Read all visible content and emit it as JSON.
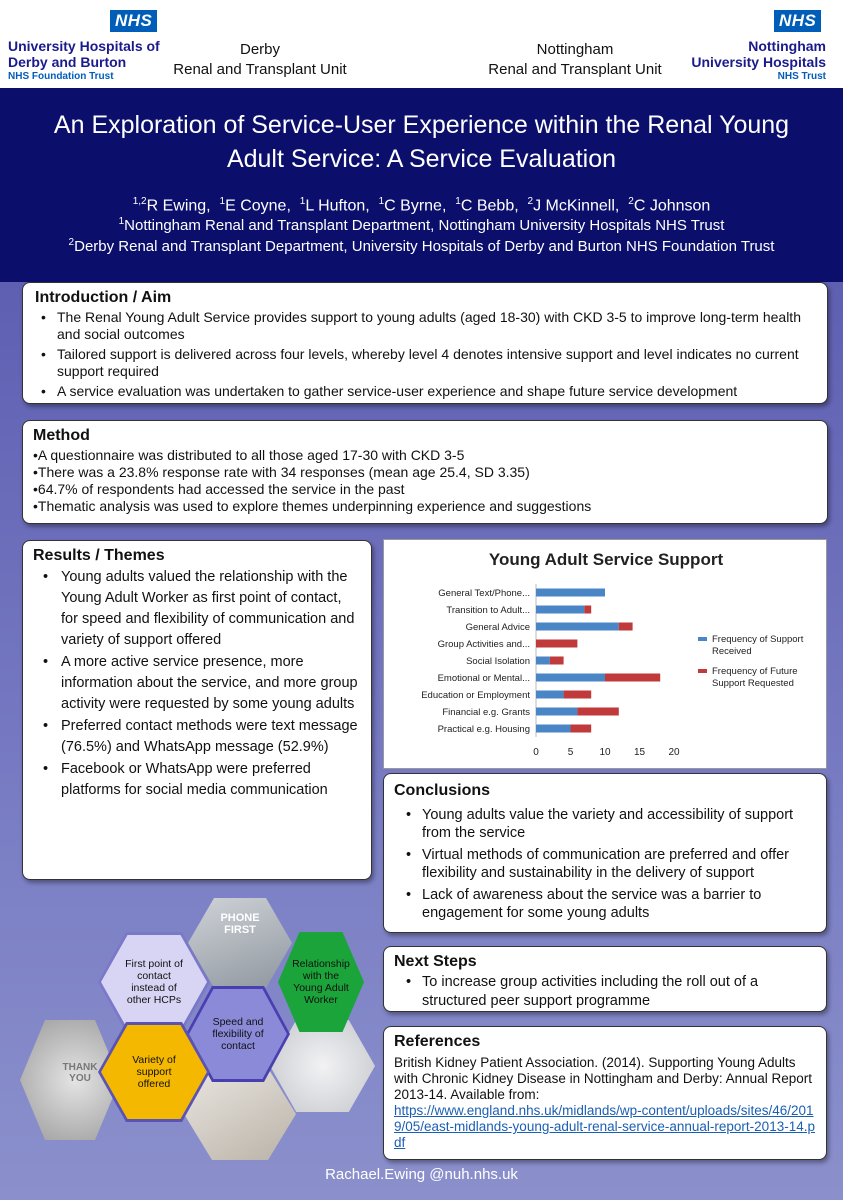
{
  "header": {
    "nhs_logo_text": "NHS",
    "left_org": {
      "line1": "University Hospitals of",
      "line2": "Derby and Burton",
      "trust": "NHS Foundation Trust"
    },
    "right_org": {
      "line1": "Nottingham",
      "line2": "University Hospitals",
      "trust": "NHS Trust"
    },
    "unit_derby": {
      "line1": "Derby",
      "line2": "Renal and Transplant Unit"
    },
    "unit_nottingham": {
      "line1": "Nottingham",
      "line2": "Renal and Transplant Unit"
    }
  },
  "title": {
    "line1": "An Exploration of Service-User Experience within the Renal Young",
    "line2": "Adult Service: A Service Evaluation"
  },
  "authors": {
    "sup1": "1,2",
    "a1": "R Ewing,",
    "sup_e": "1",
    "a2": "E Coyne,",
    "sup_l": "1",
    "a3": "L Hufton,",
    "sup_cb": "1",
    "a4": "C Byrne,",
    "sup_cbe": "1",
    "a5": "C Bebb,",
    "sup_j": "2",
    "a6": "J McKinnell,",
    "sup_cj": "2",
    "a7": "C Johnson"
  },
  "affiliations": {
    "sup1": "1",
    "line1": "Nottingham Renal and Transplant Department,  Nottingham University Hospitals NHS Trust",
    "sup2": "2",
    "line2": "Derby Renal and Transplant Department, University Hospitals of Derby and Burton NHS Foundation Trust"
  },
  "introduction": {
    "heading": "Introduction / Aim",
    "items": [
      "The Renal Young Adult Service provides support to young adults (aged 18-30) with CKD 3-5 to improve long-term health and social outcomes",
      "Tailored support is delivered across four levels, whereby level 4 denotes intensive support and level indicates no current support required",
      "A service evaluation was undertaken to gather service-user experience and shape future service development"
    ]
  },
  "method": {
    "heading": "Method",
    "items": [
      "A questionnaire was distributed to all those aged 17-30 with CKD 3-5",
      "There was a 23.8% response rate with 34 responses (mean age 25.4, SD 3.35)",
      "64.7% of respondents had accessed the service in the past",
      "Thematic analysis was used to explore themes underpinning experience and suggestions"
    ]
  },
  "results": {
    "heading": "Results / Themes",
    "items": [
      "Young adults valued the relationship with the Young Adult Worker as first point of contact, for speed and flexibility  of communication and variety of support offered",
      "A more active service presence, more information about the service, and more group activity were requested by some young adults",
      "Preferred contact methods were text message (76.5%) and WhatsApp message (52.9%)",
      "Facebook or WhatsApp were preferred platforms for social media communication"
    ]
  },
  "chart_data": {
    "type": "bar",
    "orientation": "horizontal",
    "stacked": true,
    "title": "Young Adult Service Support",
    "categories": [
      "General Text/Phone...",
      "Transition to Adult...",
      "General Advice",
      "Group Activities and...",
      "Social Isolation",
      "Emotional or Mental...",
      "Education or Employment",
      "Financial e.g. Grants",
      "Practical  e.g. Housing"
    ],
    "series": [
      {
        "name": "Frequency of Support Received",
        "color": "#4a86c5",
        "values": [
          10,
          7,
          12,
          0,
          2,
          10,
          4,
          6,
          5
        ]
      },
      {
        "name": "Frequency of Future Support Requested",
        "color": "#c0393b",
        "values": [
          0,
          1,
          2,
          6,
          2,
          8,
          4,
          6,
          3
        ]
      }
    ],
    "xlim": [
      0,
      20
    ],
    "xticks": [
      0,
      5,
      10,
      15,
      20
    ],
    "legend": "right"
  },
  "conclusions": {
    "heading": "Conclusions",
    "items": [
      "Young adults value the variety and accessibility of support from the service",
      "Virtual methods of communication are preferred and offer flexibility and sustainability in the delivery of support",
      "Lack of awareness about the service was a barrier to engagement for some young adults"
    ]
  },
  "hexagons": {
    "first_point": "First point of contact instead of other HCPs",
    "speed": "Speed and flexibility of contact",
    "relationship": "Relationship with the Young Adult Worker",
    "variety": "Variety of support offered",
    "phone_sign": "PHONE FIRST",
    "thank_you": "THANK YOU"
  },
  "next_steps": {
    "heading": "Next Steps",
    "items": [
      "To increase group activities including the roll out of a structured peer support programme"
    ]
  },
  "references": {
    "heading": "References",
    "text": "British Kidney Patient Association. (2014). Supporting Young Adults with Chronic Kidney Disease in Nottingham and Derby: Annual Report 2013-14. Available from:",
    "link": "https://www.england.nhs.uk/midlands/wp-content/uploads/sites/46/2019/05/east-midlands-young-adult-renal-service-annual-report-2013-14.pdf"
  },
  "footer": {
    "email": "Rachael.Ewing @nuh.nhs.uk"
  },
  "colors": {
    "title_band": "#0b0f6b",
    "nhs_blue": "#005eb8",
    "background": "#6a6eba",
    "hex_lavender": "#d8d4f4",
    "hex_green": "#1aa43a",
    "hex_yellow": "#f5b800"
  }
}
